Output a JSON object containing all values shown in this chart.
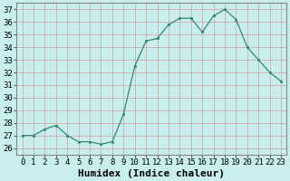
{
  "x": [
    0,
    1,
    2,
    3,
    4,
    5,
    6,
    7,
    8,
    9,
    10,
    11,
    12,
    13,
    14,
    15,
    16,
    17,
    18,
    19,
    20,
    21,
    22,
    23
  ],
  "y": [
    27,
    27,
    27.5,
    27.8,
    27,
    26.5,
    26.5,
    26.3,
    26.5,
    28.7,
    32.5,
    34.5,
    34.7,
    35.8,
    36.3,
    36.3,
    35.2,
    36.5,
    37.0,
    36.2,
    34.0,
    33.0,
    32.0,
    31.3
  ],
  "line_color": "#2e8b72",
  "marker_color": "#2e8b72",
  "bg_color": "#c8eeed",
  "grid_color": "#b0d8d8",
  "xlabel": "Humidex (Indice chaleur)",
  "ylabel_ticks": [
    26,
    27,
    28,
    29,
    30,
    31,
    32,
    33,
    34,
    35,
    36,
    37
  ],
  "ylim": [
    25.5,
    37.5
  ],
  "xlim": [
    -0.5,
    23.5
  ],
  "xlabel_fontsize": 8,
  "tick_fontsize": 6.5,
  "title": ""
}
